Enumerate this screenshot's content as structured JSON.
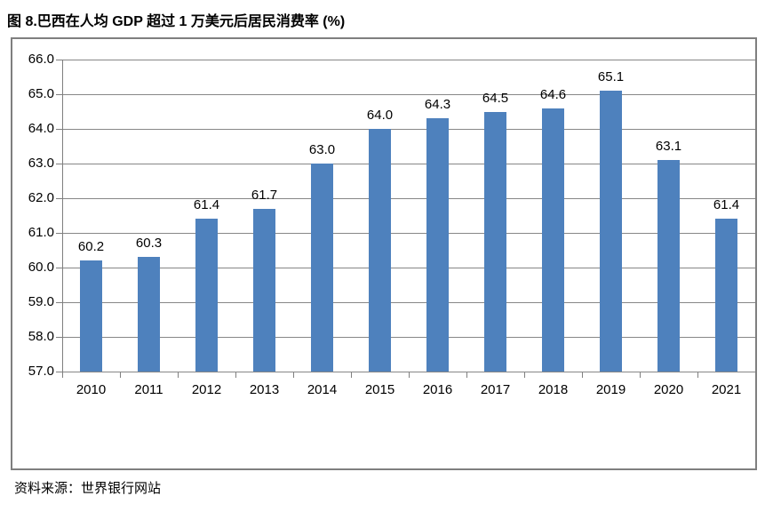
{
  "page": {
    "title": "图 8.巴西在人均 GDP 超过 1 万美元后居民消费率 (%)",
    "source": "资料来源：世界银行网站"
  },
  "chart_data": {
    "type": "bar",
    "title": "图 8.巴西在人均 GDP 超过 1 万美元后居民消费率 (%)",
    "categories": [
      "2010",
      "2011",
      "2012",
      "2013",
      "2014",
      "2015",
      "2016",
      "2017",
      "2018",
      "2019",
      "2020",
      "2021"
    ],
    "values": [
      60.2,
      60.3,
      61.4,
      61.7,
      63.0,
      64.0,
      64.3,
      64.5,
      64.6,
      65.1,
      63.1,
      61.4
    ],
    "value_labels": [
      "60.2",
      "60.3",
      "61.4",
      "61.7",
      "63.0",
      "64.0",
      "64.3",
      "64.5",
      "64.6",
      "65.1",
      "63.1",
      "61.4"
    ],
    "xlabel": "",
    "ylabel": "",
    "ylim": [
      57.0,
      66.0
    ],
    "ytick_step": 1.0,
    "yticks": [
      "66.0",
      "65.0",
      "64.0",
      "63.0",
      "62.0",
      "61.0",
      "60.0",
      "59.0",
      "58.0",
      "57.0"
    ],
    "grid": true,
    "legend": "none",
    "bar_color": "#4e81bd",
    "grid_color": "#878787",
    "axis_color": "#7f7f7f",
    "text_color": "#000000"
  }
}
